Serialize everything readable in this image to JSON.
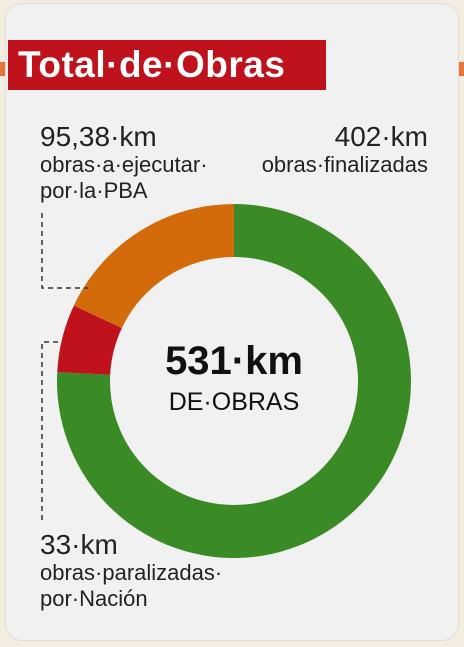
{
  "title": "Total·de·Obras",
  "chart_data": {
    "type": "pie",
    "subtype": "donut",
    "center_value": "531·km",
    "center_label": "DE·OBRAS",
    "total": 531,
    "unit": "km",
    "slices": [
      {
        "value_label": "402·km",
        "value": 402,
        "line1": "obras·finalizadas",
        "line2": "",
        "color": "#3a8b26"
      },
      {
        "value_label": "33·km",
        "value": 33,
        "line1": "obras·paralizadas·",
        "line2": "por·Nación",
        "color": "#c0121d"
      },
      {
        "value_label": "95,38·km",
        "value": 95.38,
        "line1": "obras·a·ejecutar·",
        "line2": "por·la·PBA",
        "color": "#d36b0a"
      }
    ]
  }
}
